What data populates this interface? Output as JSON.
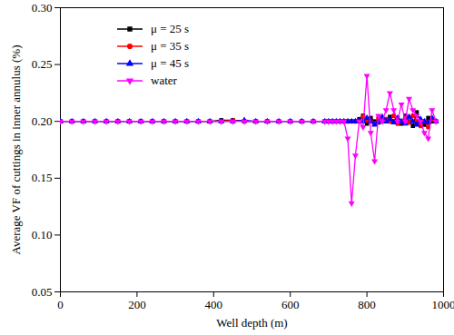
{
  "chart_data": {
    "type": "line",
    "xlabel": "Well depth (m)",
    "ylabel": "Average VF of cuttings in inner annulus (%)",
    "x": [
      0,
      30,
      60,
      90,
      120,
      150,
      180,
      210,
      240,
      270,
      300,
      330,
      360,
      390,
      420,
      450,
      480,
      510,
      540,
      570,
      600,
      630,
      660,
      690,
      700,
      710,
      720,
      730,
      740,
      750,
      760,
      770,
      780,
      790,
      800,
      810,
      820,
      830,
      840,
      850,
      860,
      870,
      880,
      890,
      900,
      910,
      920,
      930,
      940,
      950,
      960,
      970,
      980
    ],
    "series": [
      {
        "name": "μ = 25 s",
        "color": "#000000",
        "marker": "square",
        "values": [
          0.2,
          0.2,
          0.2,
          0.2,
          0.2,
          0.2,
          0.2,
          0.2,
          0.2,
          0.2,
          0.2,
          0.2,
          0.2,
          0.2,
          0.201,
          0.201,
          0.2,
          0.2,
          0.2,
          0.2,
          0.2,
          0.2,
          0.2,
          0.2,
          0.2,
          0.2,
          0.2,
          0.2,
          0.2,
          0.2,
          0.2,
          0.2,
          0.202,
          0.205,
          0.198,
          0.203,
          0.2,
          0.199,
          0.202,
          0.2,
          0.204,
          0.2,
          0.203,
          0.198,
          0.205,
          0.2,
          0.196,
          0.208,
          0.2,
          0.197,
          0.203,
          0.2,
          0.2
        ]
      },
      {
        "name": "μ = 35 s",
        "color": "#ff0000",
        "marker": "circle",
        "values": [
          0.2,
          0.2,
          0.2,
          0.2,
          0.2,
          0.2,
          0.2,
          0.2,
          0.2,
          0.2,
          0.2,
          0.2,
          0.2,
          0.2,
          0.2,
          0.201,
          0.2,
          0.2,
          0.2,
          0.2,
          0.2,
          0.2,
          0.2,
          0.2,
          0.2,
          0.2,
          0.2,
          0.2,
          0.2,
          0.2,
          0.2,
          0.2,
          0.2,
          0.204,
          0.201,
          0.2,
          0.198,
          0.203,
          0.2,
          0.202,
          0.2,
          0.205,
          0.198,
          0.2,
          0.203,
          0.199,
          0.205,
          0.2,
          0.196,
          0.2,
          0.195,
          0.202,
          0.2
        ]
      },
      {
        "name": "μ = 45 s",
        "color": "#0000ff",
        "marker": "triangle",
        "values": [
          0.2,
          0.2,
          0.2,
          0.2,
          0.2,
          0.2,
          0.2,
          0.2,
          0.2,
          0.2,
          0.2,
          0.2,
          0.2,
          0.2,
          0.2,
          0.2,
          0.201,
          0.2,
          0.2,
          0.2,
          0.2,
          0.2,
          0.2,
          0.2,
          0.2,
          0.2,
          0.2,
          0.2,
          0.2,
          0.2,
          0.2,
          0.2,
          0.201,
          0.2,
          0.203,
          0.2,
          0.197,
          0.2,
          0.204,
          0.2,
          0.202,
          0.199,
          0.203,
          0.2,
          0.198,
          0.204,
          0.2,
          0.197,
          0.202,
          0.2,
          0.199,
          0.203,
          0.2
        ]
      },
      {
        "name": "water",
        "color": "#ff00ff",
        "marker": "triangle-down",
        "values": [
          0.2,
          0.2,
          0.2,
          0.2,
          0.2,
          0.2,
          0.2,
          0.2,
          0.2,
          0.2,
          0.2,
          0.2,
          0.2,
          0.2,
          0.2,
          0.2,
          0.2,
          0.2,
          0.2,
          0.2,
          0.2,
          0.2,
          0.2,
          0.2,
          0.2,
          0.2,
          0.2,
          0.2,
          0.2,
          0.185,
          0.128,
          0.17,
          0.2,
          0.195,
          0.24,
          0.19,
          0.165,
          0.205,
          0.2,
          0.21,
          0.225,
          0.21,
          0.2,
          0.215,
          0.2,
          0.22,
          0.21,
          0.205,
          0.2,
          0.19,
          0.185,
          0.21,
          0.2
        ]
      }
    ],
    "xlim": [
      0,
      1000
    ],
    "xticks": [
      0,
      200,
      400,
      600,
      800,
      1000
    ],
    "ylim": [
      0.05,
      0.3
    ],
    "yticks": [
      {
        "value": 0.05,
        "label": "0.05"
      },
      {
        "value": 0.1,
        "label": "0.10"
      },
      {
        "value": 0.15,
        "label": "0.15"
      },
      {
        "value": 0.2,
        "label": "0.20"
      },
      {
        "value": 0.25,
        "label": "0.25"
      },
      {
        "value": 0.3,
        "label": "0.30"
      }
    ],
    "grid": false,
    "legend": "upper left"
  }
}
